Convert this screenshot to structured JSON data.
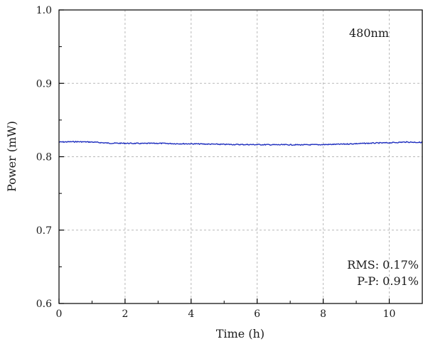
{
  "chart_data": {
    "type": "line",
    "title": "",
    "xlabel": "Time (h)",
    "ylabel": "Power (mW)",
    "xlim": [
      0,
      11
    ],
    "ylim": [
      0.6,
      1.0
    ],
    "x_ticks": [
      0,
      2,
      4,
      6,
      8,
      10
    ],
    "x_tick_labels": [
      "0",
      "2",
      "4",
      "6",
      "8",
      "10"
    ],
    "y_ticks": [
      0.6,
      0.7,
      0.8,
      0.9,
      1.0
    ],
    "y_tick_labels": [
      "0.6",
      "0.7",
      "0.8",
      "0.9",
      "1.0"
    ],
    "grid": true,
    "annotations": {
      "wavelength": "480nm",
      "rms": "RMS: 0.17%",
      "pp": "P-P: 0.91%"
    },
    "series": [
      {
        "color": "#1f2fbf",
        "x": [
          0,
          0.5,
          1,
          1.5,
          2,
          2.5,
          3,
          3.5,
          4,
          4.5,
          5,
          5.5,
          6,
          6.5,
          7,
          7.5,
          8,
          8.5,
          9,
          9.5,
          10,
          10.5,
          11
        ],
        "y": [
          0.82,
          0.8205,
          0.82,
          0.8185,
          0.8183,
          0.818,
          0.8183,
          0.8178,
          0.8176,
          0.8172,
          0.8168,
          0.8166,
          0.8165,
          0.8163,
          0.8163,
          0.8162,
          0.8165,
          0.817,
          0.8178,
          0.8185,
          0.819,
          0.82,
          0.8195
        ]
      }
    ]
  }
}
